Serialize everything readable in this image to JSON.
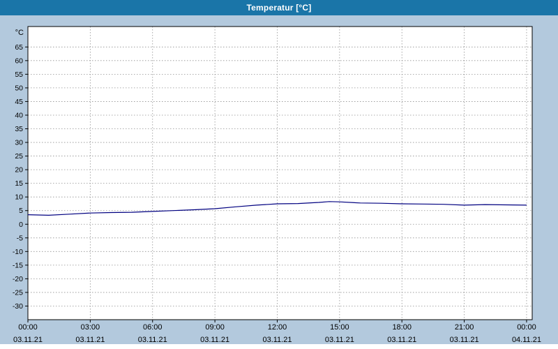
{
  "window": {
    "title": "Temperatur [°C]"
  },
  "colors": {
    "background": "#b3c9dd",
    "titlebar_bg": "#1a75a8",
    "titlebar_fg": "#ffffff",
    "plot_bg": "#ffffff",
    "grid": "#909090",
    "axis": "#000000",
    "line": "#000080",
    "footer_bg": "#ffffff"
  },
  "chart_data": {
    "type": "line",
    "title": "Temperatur [°C]",
    "xlabel": "",
    "ylabel": "°C",
    "ylim": [
      -35,
      72.5
    ],
    "y_ticks": [
      65,
      60,
      55,
      50,
      45,
      40,
      35,
      30,
      25,
      20,
      15,
      10,
      5,
      0,
      -5,
      -10,
      -15,
      -20,
      -25,
      -30
    ],
    "x_hours_lim": [
      0,
      24.27
    ],
    "x_ticks": [
      {
        "hour": 0,
        "time": "00:00",
        "date": "03.11.21"
      },
      {
        "hour": 3,
        "time": "03:00",
        "date": "03.11.21"
      },
      {
        "hour": 6,
        "time": "06:00",
        "date": "03.11.21"
      },
      {
        "hour": 9,
        "time": "09:00",
        "date": "03.11.21"
      },
      {
        "hour": 12,
        "time": "12:00",
        "date": "03.11.21"
      },
      {
        "hour": 15,
        "time": "15:00",
        "date": "03.11.21"
      },
      {
        "hour": 18,
        "time": "18:00",
        "date": "03.11.21"
      },
      {
        "hour": 21,
        "time": "21:00",
        "date": "03.11.21"
      },
      {
        "hour": 24,
        "time": "00:00",
        "date": "04.11.21"
      }
    ],
    "grid": "dashed",
    "legend": "none",
    "series": [
      {
        "name": "Temperatur",
        "color": "#000080",
        "x": [
          0,
          1,
          2,
          3,
          4,
          5,
          6,
          7,
          8,
          9,
          10,
          11,
          12,
          13,
          14,
          14.5,
          15,
          16,
          17,
          18,
          19,
          20,
          21,
          22,
          23,
          24
        ],
        "y": [
          3.5,
          3.3,
          3.7,
          4.1,
          4.3,
          4.4,
          4.7,
          5.0,
          5.3,
          5.7,
          6.4,
          7.0,
          7.5,
          7.6,
          8.0,
          8.3,
          8.2,
          7.8,
          7.7,
          7.5,
          7.4,
          7.3,
          7.0,
          7.2,
          7.1,
          7.0
        ]
      }
    ]
  }
}
